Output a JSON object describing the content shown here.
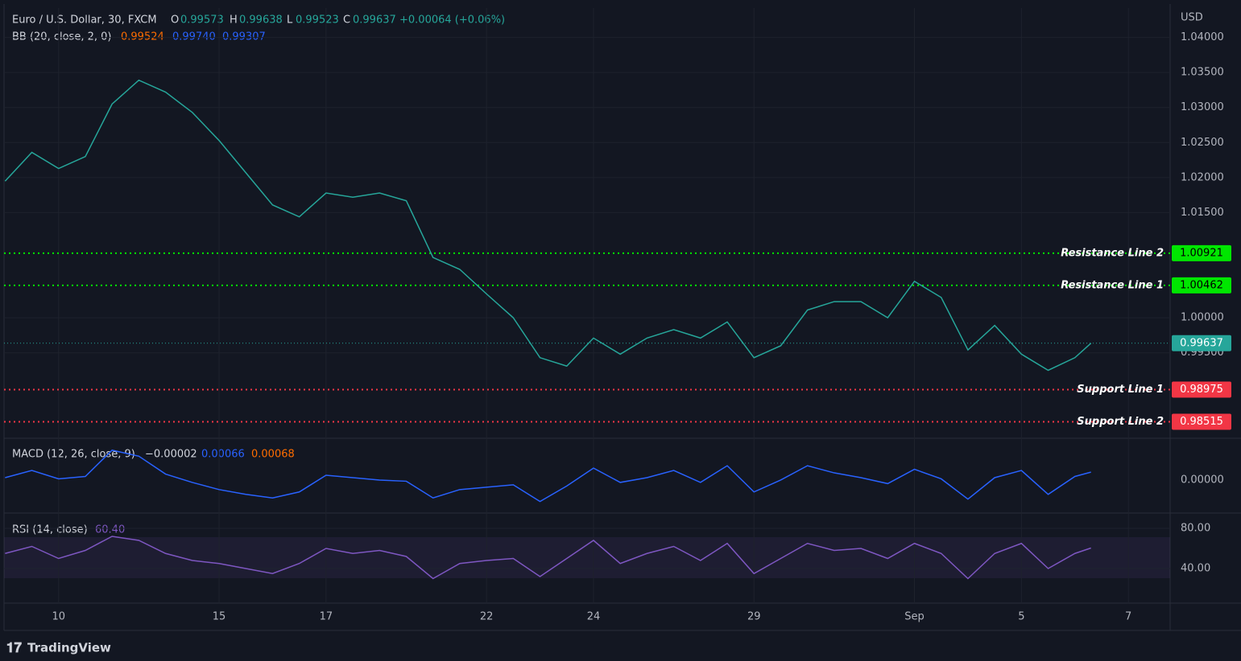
{
  "header": {
    "symbol": "Euro / U.S. Dollar, 30, FXCM",
    "open_label": "O",
    "open": "0.99573",
    "high_label": "H",
    "high": "0.99638",
    "low_label": "L",
    "low": "0.99523",
    "close_label": "C",
    "close": "0.99637",
    "change": "+0.00064 (+0.06%)",
    "bb_label": "BB (20, close, 2, 0)",
    "bb_basis": "0.99524",
    "bb_upper": "0.99740",
    "bb_lower": "0.99307",
    "currency": "USD",
    "brand": "TradingView"
  },
  "chart_data": [
    {
      "type": "line",
      "name": "price",
      "x": [
        -1,
        -0.5,
        0,
        0.5,
        1,
        1.5,
        2,
        2.5,
        3,
        3.5,
        4,
        4.5,
        5,
        5.5,
        6,
        6.5,
        7,
        7.5,
        8,
        8.5,
        9,
        9.5,
        10,
        10.5,
        11,
        11.5,
        12,
        12.5,
        13,
        13.5,
        14,
        14.5,
        15,
        15.5,
        16,
        16.5,
        17,
        17.5,
        18,
        18.5,
        19,
        19.3
      ],
      "series": [
        {
          "color": "#26a69a",
          "values": [
            1.0195,
            1.0236,
            1.0213,
            1.023,
            1.0305,
            1.0339,
            1.0322,
            1.0293,
            1.0253,
            1.0207,
            1.0161,
            1.0144,
            1.0178,
            1.0172,
            1.0178,
            1.0167,
            1.0086,
            1.0069,
            1.0034,
            1.0,
            0.9943,
            0.9931,
            0.9971,
            0.9948,
            0.9971,
            0.9983,
            0.9971,
            0.9994,
            0.9943,
            0.996,
            1.0011,
            1.0023,
            1.0023,
            1.0,
            1.0052,
            1.0029,
            0.9954,
            0.9989,
            0.9948,
            0.9925,
            0.9943,
            0.99637
          ]
        }
      ],
      "xlim": [
        -1.02,
        20.78
      ],
      "xticks": [
        {
          "value": 0,
          "label": "10"
        },
        {
          "value": 3,
          "label": "15"
        },
        {
          "value": 5,
          "label": "17"
        },
        {
          "value": 8,
          "label": "22"
        },
        {
          "value": 10,
          "label": "24"
        },
        {
          "value": 13,
          "label": "29"
        },
        {
          "value": 16,
          "label": "Sep"
        },
        {
          "value": 18,
          "label": "5"
        },
        {
          "value": 20,
          "label": "7"
        }
      ],
      "ylim": [
        0.9828,
        1.0442
      ],
      "yticks": [
        {
          "value": 1.04,
          "label": "1.04000"
        },
        {
          "value": 1.035,
          "label": "1.03500"
        },
        {
          "value": 1.03,
          "label": "1.03000"
        },
        {
          "value": 1.025,
          "label": "1.02500"
        },
        {
          "value": 1.02,
          "label": "1.02000"
        },
        {
          "value": 1.015,
          "label": "1.01500"
        },
        {
          "value": 1.0,
          "label": "1.00000"
        },
        {
          "value": 0.995,
          "label": "0.99500"
        }
      ],
      "grid": true,
      "lines": [
        {
          "name": "Resistance Line 2",
          "value": 1.00921,
          "color": "#00e600"
        },
        {
          "name": "Resistance Line 1",
          "value": 1.00462,
          "color": "#00e600"
        },
        {
          "name": "Support Line 1",
          "value": 0.98975,
          "color": "#f23645"
        },
        {
          "name": "Support Line 2",
          "value": 0.98515,
          "color": "#f23645"
        }
      ],
      "last_price": {
        "value": 0.99637,
        "color": "#26a69a"
      }
    },
    {
      "type": "line",
      "name": "macd",
      "title": "MACD (12, 26, close, 9)",
      "legend_values": [
        "−0.00002",
        "0.00066",
        "0.00068"
      ],
      "series": [
        {
          "color": "#2962ff",
          "values": [
            0.0002,
            0.0008,
            0.0001,
            0.0003,
            0.0025,
            0.002,
            0.0005,
            -0.0002,
            -0.0008,
            -0.0012,
            -0.0015,
            -0.001,
            0.0004,
            0.0002,
            0.0,
            -0.0001,
            -0.0015,
            -0.0008,
            -0.0006,
            -0.0004,
            -0.0018,
            -0.0005,
            0.001,
            -0.0002,
            0.0002,
            0.0008,
            -0.0002,
            0.0012,
            -0.001,
            0.0,
            0.0012,
            0.0006,
            0.0002,
            -0.0003,
            0.0009,
            0.0001,
            -0.0016,
            0.0002,
            0.0008,
            -0.0012,
            0.0003,
            0.00066
          ]
        }
      ],
      "ylim": [
        -0.0027,
        0.0033
      ],
      "yticks": [
        {
          "value": 0,
          "label": "0.00000"
        }
      ]
    },
    {
      "type": "line",
      "name": "rsi",
      "title": "RSI (14, close)",
      "legend_values": [
        "60.40"
      ],
      "series": [
        {
          "color": "#7e57c2",
          "values": [
            55,
            62,
            50,
            58,
            72,
            68,
            55,
            48,
            45,
            40,
            35,
            45,
            60,
            55,
            58,
            52,
            30,
            45,
            48,
            50,
            32,
            50,
            68,
            45,
            55,
            62,
            48,
            65,
            35,
            50,
            65,
            58,
            60,
            50,
            65,
            55,
            30,
            55,
            65,
            40,
            55,
            60.4
          ]
        }
      ],
      "ylim": [
        5.6,
        93.6
      ],
      "yticks": [
        {
          "value": 80,
          "label": "80.00"
        },
        {
          "value": 40,
          "label": "40.00"
        }
      ]
    }
  ]
}
